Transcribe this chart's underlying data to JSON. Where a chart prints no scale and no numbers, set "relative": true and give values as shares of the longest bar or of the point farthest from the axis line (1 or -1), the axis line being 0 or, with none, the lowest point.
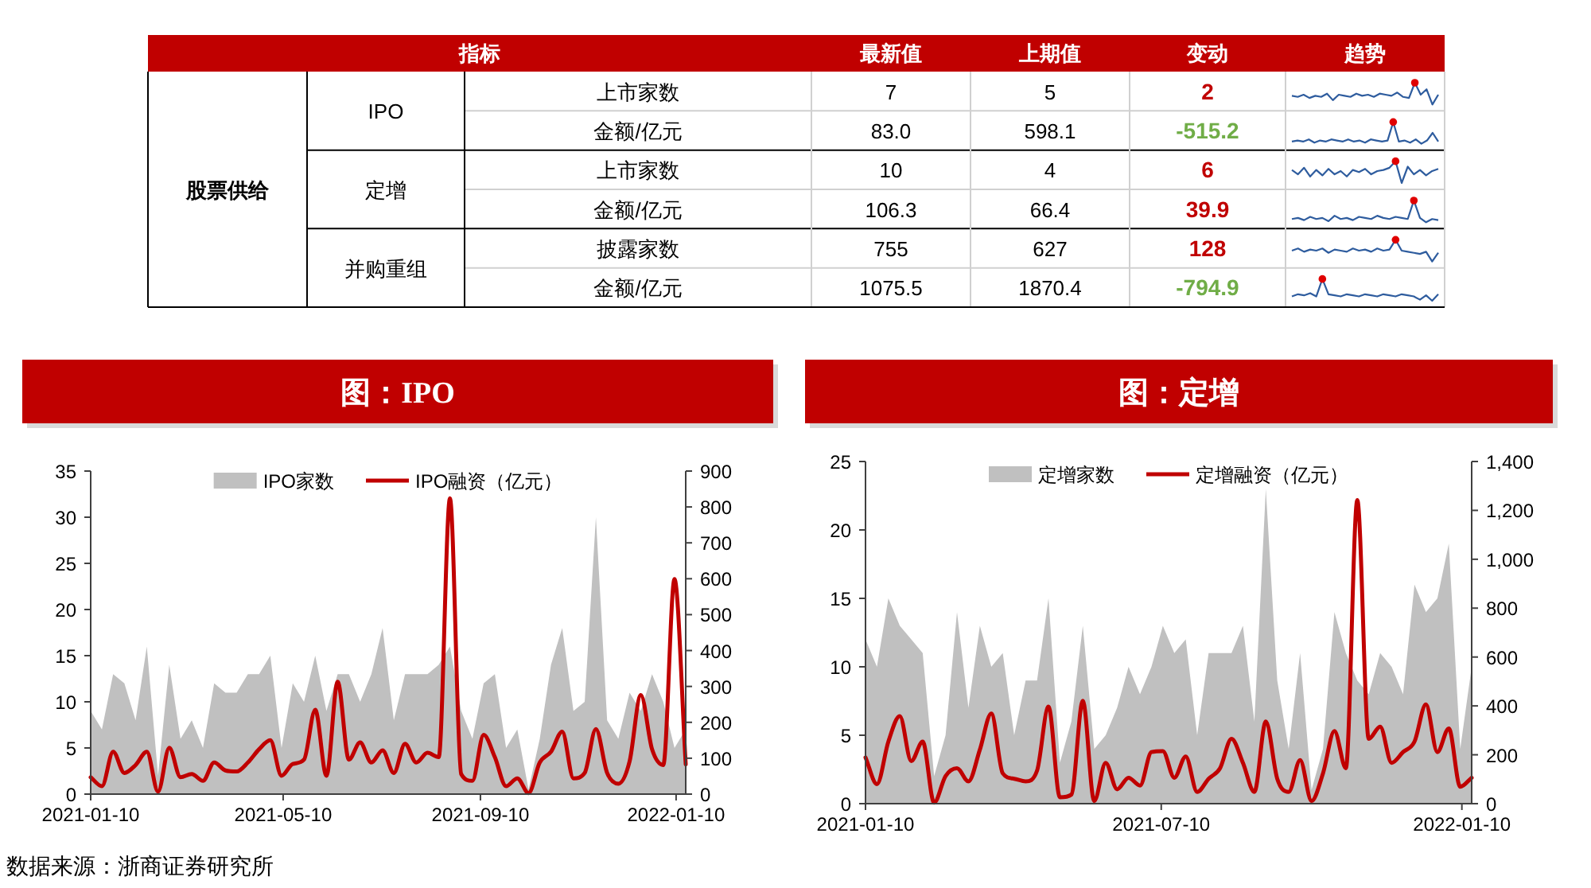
{
  "chart_data": [
    {
      "type": "other",
      "categories": [
        "指标",
        "最新值",
        "上期值",
        "变动",
        "趋势"
      ],
      "cell_labels": [
        [
          "股票供给",
          "IPO",
          "上市家数",
          "7",
          "5",
          "2"
        ],
        [
          null,
          null,
          "金额/亿元",
          "83.0",
          "598.1",
          "-515.2"
        ],
        [
          null,
          "定增",
          "上市家数",
          "10",
          "4",
          "6"
        ],
        [
          null,
          null,
          "金额/亿元",
          "106.3",
          "66.4",
          "39.9"
        ],
        [
          null,
          "并购重组",
          "披露家数",
          "755",
          "627",
          "128"
        ],
        [
          null,
          null,
          "金额/亿元",
          "1075.5",
          "1870.4",
          "-794.9"
        ]
      ]
    },
    {
      "type": "line",
      "relative": true,
      "categories": [
        null,
        null,
        null,
        null,
        null,
        null,
        null,
        null,
        null,
        null,
        null,
        null,
        null,
        null,
        null,
        null,
        null,
        null,
        null,
        null,
        null,
        null,
        null,
        null,
        null,
        null
      ],
      "series": [
        {
          "color": "#2e5c9e",
          "values": [
            0.4,
            0.35,
            0.45,
            0.3,
            0.4,
            0.35,
            0.5,
            0.2,
            0.45,
            0.4,
            0.35,
            0.5,
            0.4,
            0.45,
            0.35,
            0.5,
            0.45,
            0.4,
            0.55,
            0.35,
            0.3,
            1,
            0.45,
            0.7,
            0,
            0.45
          ]
        }
      ]
    },
    {
      "type": "line",
      "relative": true,
      "categories": [
        null,
        null,
        null,
        null,
        null,
        null,
        null,
        null,
        null,
        null,
        null,
        null,
        null,
        null,
        null,
        null,
        null,
        null,
        null,
        null,
        null,
        null,
        null,
        null,
        null,
        null,
        null
      ],
      "series": [
        {
          "color": "#2e5c9e",
          "values": [
            0.1,
            0.15,
            0.1,
            0.2,
            0.05,
            0.15,
            0.1,
            0.2,
            0.15,
            0.1,
            0.2,
            0.1,
            0.15,
            0.05,
            0.2,
            0.15,
            0.1,
            0.15,
            1,
            0.1,
            0.15,
            0.05,
            0.2,
            0,
            0.15,
            0.5,
            0.1
          ]
        }
      ]
    },
    {
      "type": "line",
      "relative": true,
      "categories": [
        null,
        null,
        null,
        null,
        null,
        null,
        null,
        null,
        null,
        null,
        null,
        null,
        null,
        null,
        null,
        null,
        null,
        null,
        null,
        null,
        null,
        null,
        null,
        null,
        null
      ],
      "series": [
        {
          "color": "#2e5c9e",
          "values": [
            0.6,
            0.4,
            0.7,
            0.3,
            0.6,
            0.35,
            0.65,
            0.4,
            0.55,
            0.3,
            0.6,
            0.5,
            0.65,
            0.4,
            0.55,
            0.6,
            0.7,
            1,
            0,
            0.75,
            0.4,
            0.6,
            0.35,
            0.55,
            0.65
          ]
        }
      ]
    },
    {
      "type": "line",
      "relative": true,
      "categories": [
        null,
        null,
        null,
        null,
        null,
        null,
        null,
        null,
        null,
        null,
        null,
        null,
        null,
        null,
        null,
        null,
        null,
        null,
        null,
        null,
        null,
        null,
        null,
        null,
        null
      ],
      "series": [
        {
          "color": "#2e5c9e",
          "values": [
            0.15,
            0.2,
            0.1,
            0.25,
            0.15,
            0.2,
            0.05,
            0.3,
            0.15,
            0.2,
            0.1,
            0.25,
            0.2,
            0.15,
            0.3,
            0.2,
            0.15,
            0.25,
            0.2,
            0.15,
            1,
            0.2,
            0,
            0.15,
            0.1
          ]
        }
      ]
    },
    {
      "type": "line",
      "relative": true,
      "categories": [
        null,
        null,
        null,
        null,
        null,
        null,
        null,
        null,
        null,
        null,
        null,
        null,
        null,
        null,
        null,
        null,
        null,
        null,
        null,
        null,
        null,
        null,
        null,
        null,
        null
      ],
      "series": [
        {
          "color": "#2e5c9e",
          "values": [
            0.5,
            0.6,
            0.45,
            0.55,
            0.5,
            0.6,
            0.4,
            0.55,
            0.5,
            0.45,
            0.6,
            0.5,
            0.55,
            0.45,
            0.6,
            0.5,
            0.55,
            1,
            0.5,
            0.45,
            0.4,
            0.35,
            0.45,
            0,
            0.4
          ]
        }
      ]
    },
    {
      "type": "line",
      "relative": true,
      "categories": [
        null,
        null,
        null,
        null,
        null,
        null,
        null,
        null,
        null,
        null,
        null,
        null,
        null,
        null,
        null,
        null,
        null,
        null,
        null,
        null,
        null,
        null,
        null,
        null,
        null
      ],
      "series": [
        {
          "color": "#2e5c9e",
          "values": [
            0.2,
            0.3,
            0.25,
            0.35,
            0.2,
            1,
            0.3,
            0.25,
            0.2,
            0.3,
            0.25,
            0.2,
            0.3,
            0.25,
            0.2,
            0.3,
            0.25,
            0.2,
            0.3,
            0.25,
            0.2,
            0.05,
            0.25,
            0,
            0.3
          ]
        }
      ]
    },
    {
      "type": "area",
      "title": "图：IPO",
      "legend": "top",
      "annotations": [
        "数据来源：浙商证券研究所"
      ],
      "x": [
        "2021-01-10",
        "2021-01-17",
        "2021-01-24",
        "2021-01-31",
        "2021-02-07",
        "2021-02-14",
        "2021-02-21",
        "2021-02-28",
        "2021-03-07",
        "2021-03-14",
        "2021-03-21",
        "2021-03-28",
        "2021-04-04",
        "2021-04-11",
        "2021-04-18",
        "2021-04-25",
        "2021-05-02",
        "2021-05-09",
        "2021-05-16",
        "2021-05-23",
        "2021-05-30",
        "2021-06-06",
        "2021-06-13",
        "2021-06-20",
        "2021-06-27",
        "2021-07-04",
        "2021-07-11",
        "2021-07-18",
        "2021-07-25",
        "2021-08-01",
        "2021-08-08",
        "2021-08-15",
        "2021-08-22",
        "2021-08-29",
        "2021-09-05",
        "2021-09-12",
        "2021-09-19",
        "2021-09-26",
        "2021-10-03",
        "2021-10-10",
        "2021-10-17",
        "2021-10-24",
        "2021-10-31",
        "2021-11-07",
        "2021-11-14",
        "2021-11-21",
        "2021-11-28",
        "2021-12-05",
        "2021-12-12",
        "2021-12-19",
        "2021-12-26",
        "2022-01-02",
        "2022-01-09",
        "2022-01-16"
      ],
      "xlim": [
        "2021-01-10",
        "2022-01-16"
      ],
      "xticks": [
        "2021-01-10",
        "2021-05-10",
        "2021-09-10",
        "2022-01-10"
      ],
      "ylim": [
        0,
        35
      ],
      "yticks": [
        0,
        5,
        10,
        15,
        20,
        25,
        30,
        35
      ],
      "y2lim": [
        0,
        900
      ],
      "y2ticks": [
        0,
        100,
        200,
        300,
        400,
        500,
        600,
        700,
        800,
        900
      ],
      "series": [
        {
          "name": "IPO家数",
          "color": "#c0c0c0",
          "values": [
            9,
            7,
            13,
            12,
            8,
            16,
            2,
            14,
            6,
            8,
            5,
            12,
            11,
            11,
            13,
            13,
            15,
            5,
            12,
            10,
            15,
            9,
            13,
            13,
            10,
            13,
            18,
            8,
            13,
            13,
            13,
            14,
            16,
            9,
            6,
            12,
            13,
            5,
            7,
            0.5,
            6,
            14,
            18,
            9,
            10,
            30,
            8,
            6,
            11,
            9,
            13,
            10,
            5,
            7
          ]
        },
        {
          "name": "IPO融资（亿元）",
          "type": "line",
          "axis": "y2",
          "color": "#c00000",
          "values": [
            47,
            22,
            118,
            59,
            81,
            118,
            7,
            129,
            47,
            56,
            37,
            88,
            66,
            63,
            88,
            125,
            150,
            51,
            84,
            96,
            235,
            51,
            313,
            96,
            144,
            88,
            122,
            59,
            140,
            88,
            115,
            103,
            824,
            56,
            37,
            165,
            103,
            22,
            44,
            3,
            88,
            118,
            174,
            44,
            59,
            181,
            59,
            29,
            91,
            276,
            125,
            81,
            599,
            83
          ]
        }
      ]
    },
    {
      "type": "area",
      "title": "图：定增",
      "legend": "top",
      "x": [
        "2021-01-10",
        "2021-01-17",
        "2021-01-24",
        "2021-01-31",
        "2021-02-07",
        "2021-02-14",
        "2021-02-21",
        "2021-02-28",
        "2021-03-07",
        "2021-03-14",
        "2021-03-21",
        "2021-03-28",
        "2021-04-04",
        "2021-04-11",
        "2021-04-18",
        "2021-04-25",
        "2021-05-02",
        "2021-05-09",
        "2021-05-16",
        "2021-05-23",
        "2021-05-30",
        "2021-06-06",
        "2021-06-13",
        "2021-06-20",
        "2021-06-27",
        "2021-07-04",
        "2021-07-11",
        "2021-07-18",
        "2021-07-25",
        "2021-08-01",
        "2021-08-08",
        "2021-08-15",
        "2021-08-22",
        "2021-08-29",
        "2021-09-05",
        "2021-09-12",
        "2021-09-19",
        "2021-09-26",
        "2021-10-03",
        "2021-10-10",
        "2021-10-17",
        "2021-10-24",
        "2021-10-31",
        "2021-11-07",
        "2021-11-14",
        "2021-11-21",
        "2021-11-28",
        "2021-12-05",
        "2021-12-12",
        "2021-12-19",
        "2021-12-26",
        "2022-01-02",
        "2022-01-09",
        "2022-01-16"
      ],
      "xlim": [
        "2021-01-10",
        "2022-01-16"
      ],
      "xticks": [
        "2021-01-10",
        "2021-07-10",
        "2022-01-10"
      ],
      "ylim": [
        0,
        25
      ],
      "yticks": [
        0,
        5,
        10,
        15,
        20,
        25
      ],
      "y2lim": [
        0,
        1400
      ],
      "y2ticks": [
        0,
        200,
        400,
        600,
        800,
        {
          "value": 1000,
          "label": "1,000"
        },
        {
          "value": 1200,
          "label": "1,200"
        },
        {
          "value": 1400,
          "label": "1,400"
        }
      ],
      "series": [
        {
          "name": "定增家数",
          "color": "#c0c0c0",
          "values": [
            12,
            10,
            15,
            13,
            12,
            11,
            2,
            5,
            14,
            7,
            13,
            10,
            11,
            5,
            9,
            9,
            15,
            3,
            6,
            13,
            4,
            5,
            7,
            10,
            8,
            10,
            13,
            11,
            12,
            5,
            11,
            11,
            11,
            13,
            6,
            23,
            9,
            4,
            11,
            1,
            4,
            14,
            11,
            9,
            8,
            11,
            10,
            8,
            16,
            14,
            15,
            19,
            4,
            10
          ]
        },
        {
          "name": "定增融资（亿元）",
          "type": "line",
          "axis": "y2",
          "color": "#c00000",
          "values": [
            189,
            80,
            254,
            358,
            174,
            254,
            4,
            113,
            145,
            91,
            221,
            369,
            124,
            102,
            91,
            135,
            397,
            26,
            37,
            421,
            11,
            167,
            59,
            106,
            74,
            211,
            215,
            106,
            193,
            48,
            102,
            145,
            265,
            167,
            48,
            336,
            102,
            48,
            178,
            11,
            124,
            297,
            145,
            1242,
            265,
            315,
            167,
            211,
            254,
            406,
            211,
            308,
            69,
            106
          ]
        }
      ]
    }
  ]
}
